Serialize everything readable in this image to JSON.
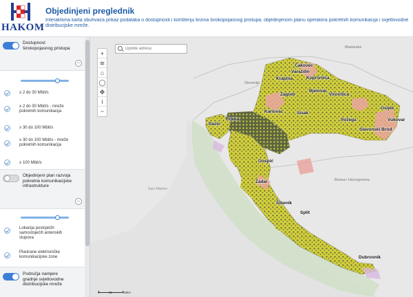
{
  "header": {
    "logo_text": "HAKOM",
    "title": "Objedinjeni preglednik",
    "description": "Interaktivna karta obuhvaća prikaz podataka o dostupnosti i korištenju brzina širokopojasnog pristupa, objedinjenom planu operatora pokretnih komunikacija i svjetlovodne distribucijske mreže."
  },
  "colors": {
    "accent": "#3d7fd6",
    "title_blue": "#1d5aa8",
    "coverage_yellow": "#d6d23a",
    "coverage_dark": "#5a6040",
    "coverage_pink": "#e9a6a0",
    "water": "#c9d9c2"
  },
  "sidebar": {
    "layers": [
      {
        "title": "Dostupnost širokopojasnog pristupa",
        "enabled": true,
        "slider_fraction": 0.75,
        "items": [
          {
            "label": "≥ 2 do 30 Mbit/s",
            "icon": "check-circle-icon"
          },
          {
            "label": "≥ 2 do 30 Mbit/s - mreže pokretnih komunikacija",
            "icon": "check-circle-icon"
          },
          {
            "label": "≥ 30 do 100 Mbit/s",
            "icon": "check-circle-icon"
          },
          {
            "label": "≥ 30 do 100 Mbit/s - mreže pokretnih komunikacija",
            "icon": "check-circle-icon"
          },
          {
            "label": "≥ 100 Mbit/s",
            "icon": "check-circle-icon"
          }
        ]
      },
      {
        "title": "Objedinjeni plan razvoja pokretne komunikacijske infrastrukture",
        "enabled": false,
        "slider_fraction": 0.75,
        "items": [
          {
            "label": "Lokacija postojećih samostojećih antenskih stupova",
            "icon": "check-circle-icon"
          },
          {
            "label": "Planirane elektroničke komunikacijske zone",
            "icon": "check-circle-icon"
          }
        ]
      },
      {
        "title": "Područja namjere gradnje svjetlovodne distribucijske mreže",
        "enabled": true
      }
    ]
  },
  "map": {
    "search_placeholder": "Upišite adresu",
    "controls": [
      {
        "name": "zoom-in-button",
        "glyph": "+"
      },
      {
        "name": "layers-button",
        "glyph": "≋"
      },
      {
        "name": "home-button",
        "glyph": "⌂"
      },
      {
        "name": "locate-button",
        "glyph": "◯"
      },
      {
        "name": "pan-button",
        "glyph": "✥"
      },
      {
        "name": "info-button",
        "glyph": "i"
      },
      {
        "name": "zoom-out-button",
        "glyph": "−"
      }
    ],
    "cities": [
      "Čakovec",
      "Varaždin",
      "Koprivnica",
      "Krapina",
      "Zagreb",
      "Bjelovar",
      "Virovitica",
      "Sisak",
      "Osijek",
      "Karlovac",
      "Požega",
      "Vukovar",
      "Slavonski Brod",
      "Rijeka",
      "Pazin",
      "Gospić",
      "Zadar",
      "Šibenik",
      "Split",
      "Dubrovnik"
    ],
    "regions": [
      "Madarska",
      "Slovenija",
      "Bosna i Hercegovina",
      "San Marino"
    ],
    "scale_labels": [
      "0",
      "25",
      "50km"
    ]
  }
}
